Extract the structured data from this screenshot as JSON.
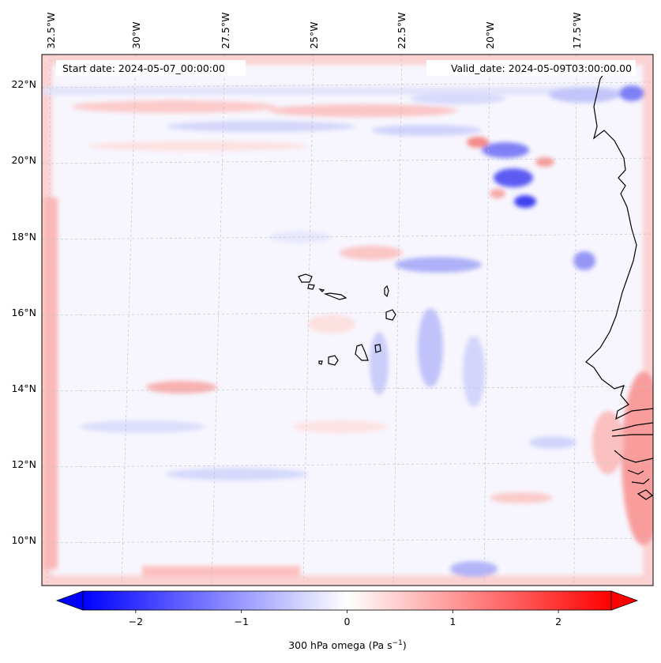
{
  "map": {
    "start_date_text": "Start date: 2024-05-07_00:00:00",
    "valid_date_text": "Valid_date: 2024-05-09T03:00:00.00",
    "lon_labels": [
      "32.5°W",
      "30°W",
      "27.5°W",
      "25°W",
      "22.5°W",
      "20°W",
      "17.5°W"
    ],
    "lat_labels": [
      "22°N",
      "20°N",
      "18°N",
      "16°N",
      "14°N",
      "12°N",
      "10°N"
    ],
    "field": "300 hPa omega",
    "gridlines": true
  },
  "colorbar": {
    "label_prefix": "300 hPa omega (Pa s",
    "label_sup": "−1",
    "label_suffix": ")",
    "ticks": [
      "−2",
      "−1",
      "0",
      "1",
      "2"
    ],
    "tick_values": [
      -2,
      -1,
      0,
      1,
      2
    ],
    "range": [
      -2.5,
      2.5
    ],
    "extend": "both",
    "colormap": "bwr",
    "color_low": "#0000ff",
    "color_mid": "#ffffff",
    "color_high": "#ff0000"
  }
}
